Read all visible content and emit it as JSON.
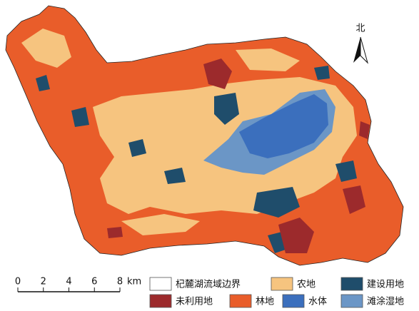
{
  "north_label": "北",
  "scale_bar": {
    "ticks": [
      0,
      2,
      4,
      6,
      8
    ],
    "unit": "km"
  },
  "legend": [
    {
      "label": "杞麓湖流域边界",
      "color": "#ffffff"
    },
    {
      "label": "农地",
      "color": "#f6c47f"
    },
    {
      "label": "建设用地",
      "color": "#1f4d6b"
    },
    {
      "label": "未利用地",
      "color": "#9c2a2c"
    },
    {
      "label": "林地",
      "color": "#e95d2a"
    },
    {
      "label": "水体",
      "color": "#3b6fbd"
    },
    {
      "label": "滩涂湿地",
      "color": "#6b96c6"
    }
  ]
}
